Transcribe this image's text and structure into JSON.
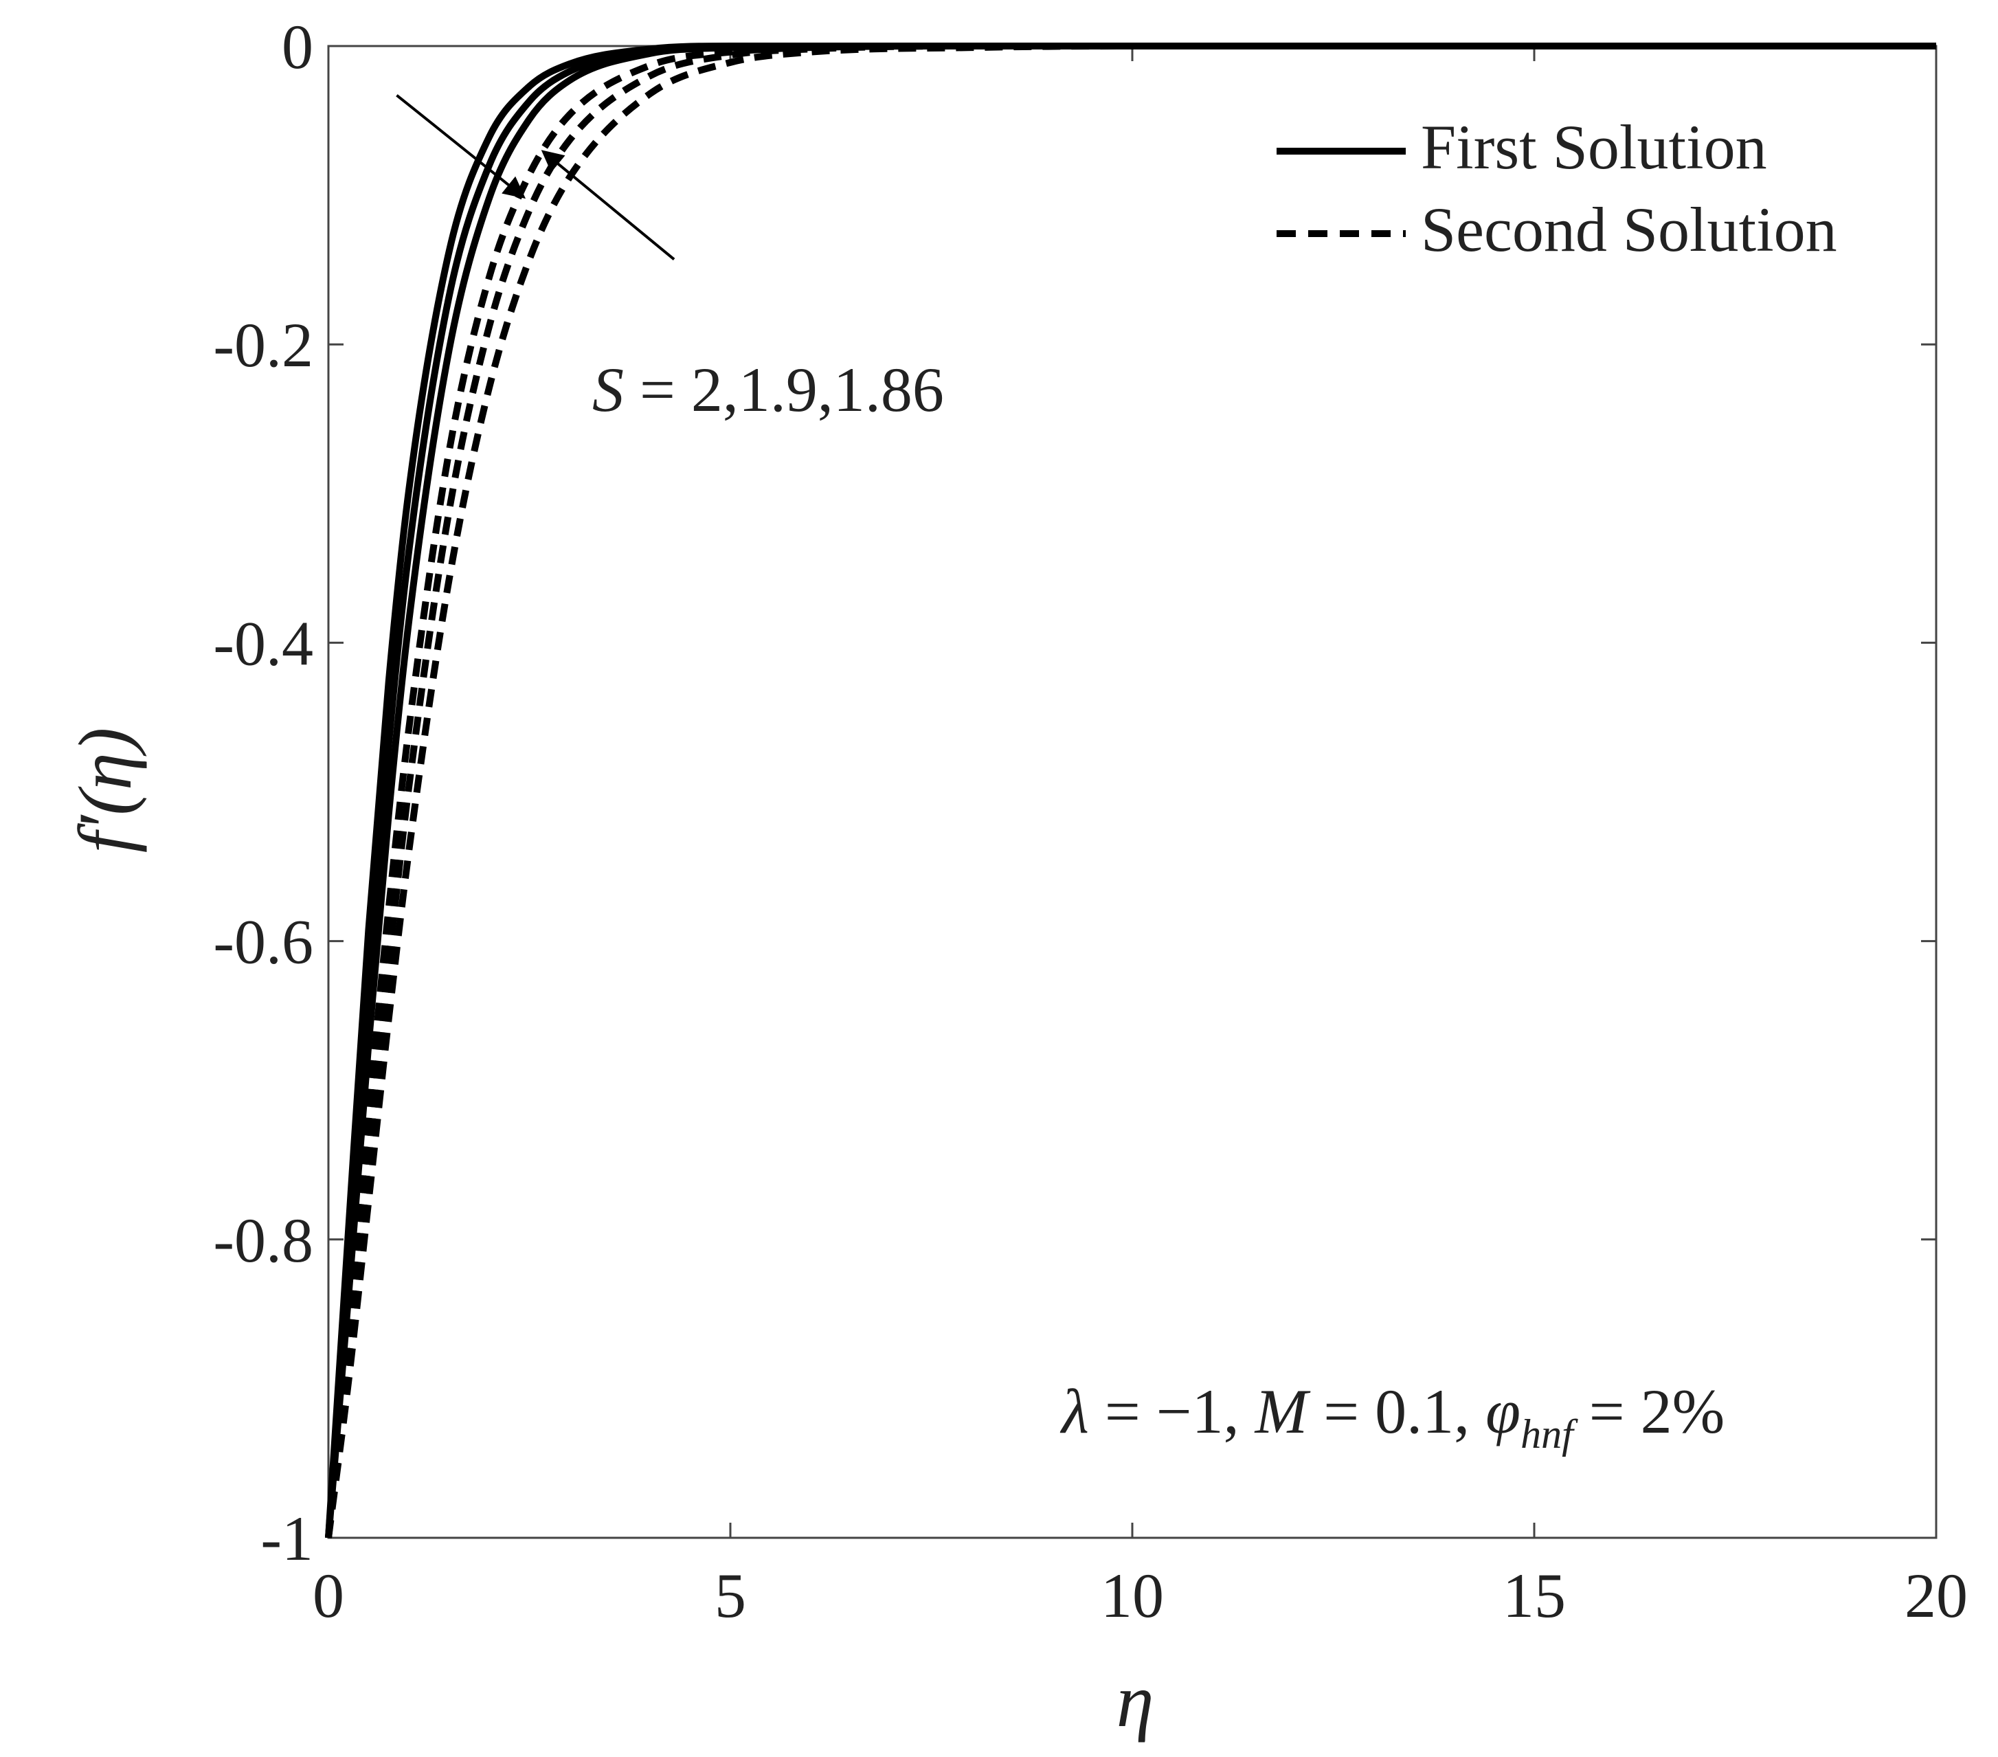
{
  "chart_data": {
    "type": "line",
    "xlabel": "η",
    "ylabel": "f′(η)",
    "xlim": [
      0,
      20
    ],
    "ylim": [
      -1,
      0
    ],
    "xticks": [
      "0",
      "5",
      "10",
      "15",
      "20"
    ],
    "yticks": [
      "0",
      "-0.2",
      "-0.4",
      "-0.6",
      "-0.8",
      "-1"
    ],
    "grid": false,
    "legend": {
      "placement": "top-right",
      "entries": [
        {
          "label": "First Solution",
          "style": "solid"
        },
        {
          "label": "Second Solution",
          "style": "dashed"
        }
      ]
    },
    "x": [
      0,
      0.25,
      0.5,
      0.75,
      1,
      1.5,
      2,
      2.5,
      3,
      4,
      5,
      6,
      8,
      10,
      12,
      15,
      20
    ],
    "series": [
      {
        "style": "solid",
        "S": 2,
        "values": [
          -1,
          -0.793,
          -0.592,
          -0.426,
          -0.298,
          -0.138,
          -0.061,
          -0.027,
          -0.012,
          -0.002,
          0,
          0,
          0,
          0,
          0,
          0,
          0
        ]
      },
      {
        "style": "solid",
        "S": 1.9,
        "values": [
          -1,
          -0.817,
          -0.631,
          -0.468,
          -0.339,
          -0.168,
          -0.08,
          -0.037,
          -0.017,
          -0.004,
          -0.001,
          0,
          0,
          0,
          0,
          0,
          0
        ]
      },
      {
        "style": "solid",
        "S": 1.86,
        "values": [
          -1,
          -0.838,
          -0.669,
          -0.515,
          -0.386,
          -0.204,
          -0.102,
          -0.049,
          -0.023,
          -0.005,
          -0.001,
          0,
          0,
          0,
          0,
          0,
          0
        ]
      },
      {
        "style": "dashed",
        "S": 2,
        "values": [
          -1,
          -0.862,
          -0.716,
          -0.578,
          -0.458,
          -0.272,
          -0.155,
          -0.086,
          -0.046,
          -0.013,
          -0.004,
          -0.001,
          0,
          0,
          0,
          0,
          0
        ]
      },
      {
        "style": "dashed",
        "S": 1.9,
        "values": [
          -1,
          -0.879,
          -0.745,
          -0.615,
          -0.497,
          -0.312,
          -0.188,
          -0.11,
          -0.063,
          -0.02,
          -0.006,
          -0.002,
          0,
          0,
          0,
          0,
          0
        ]
      },
      {
        "style": "dashed",
        "S": 1.86,
        "values": [
          -1,
          -0.895,
          -0.774,
          -0.652,
          -0.54,
          -0.358,
          -0.229,
          -0.143,
          -0.088,
          -0.032,
          -0.011,
          -0.004,
          -0.001,
          0,
          0,
          0,
          0
        ]
      }
    ],
    "annotations": {
      "s_label": {
        "var": "S",
        "eq": " = ",
        "values": "2,1.9,1.86"
      },
      "params": {
        "lambda_sym": "λ",
        "lambda_val": " = −1, ",
        "m_sym": "M",
        "m_val": " = 0.1, ",
        "phi_sym": "φ",
        "phi_sub": "hnf",
        "phi_val": " = 2%"
      }
    },
    "colors": {
      "line": "#000000",
      "axis": "#444444",
      "text": "#222222"
    }
  }
}
